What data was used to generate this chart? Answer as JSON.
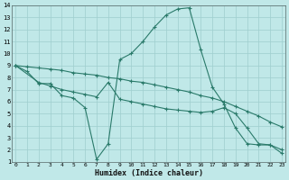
{
  "bg_color": "#c0e8e8",
  "grid_color": "#9ecece",
  "line_color": "#2a7a6a",
  "xlim": [
    0,
    23
  ],
  "ylim": [
    1,
    14
  ],
  "xticks": [
    0,
    1,
    2,
    3,
    4,
    5,
    6,
    7,
    8,
    9,
    10,
    11,
    12,
    13,
    14,
    15,
    16,
    17,
    18,
    19,
    20,
    21,
    22,
    23
  ],
  "yticks": [
    1,
    2,
    3,
    4,
    5,
    6,
    7,
    8,
    9,
    10,
    11,
    12,
    13,
    14
  ],
  "xlabel": "Humidex (Indice chaleur)",
  "line1_x": [
    0,
    1,
    2,
    3,
    4,
    5,
    6,
    7,
    8,
    9,
    10,
    11,
    12,
    13,
    14,
    15,
    16,
    17,
    18,
    19,
    20,
    21,
    22,
    23
  ],
  "line1_y": [
    9.0,
    8.5,
    7.5,
    7.5,
    6.5,
    6.3,
    5.5,
    1.2,
    2.5,
    9.5,
    10.0,
    11.0,
    12.2,
    13.2,
    13.7,
    13.8,
    10.3,
    7.2,
    5.8,
    3.8,
    2.5,
    2.4,
    2.4,
    1.7
  ],
  "line2_x": [
    0,
    1,
    2,
    3,
    4,
    5,
    6,
    7,
    8,
    9,
    10,
    11,
    12,
    13,
    14,
    15,
    16,
    17,
    18,
    19,
    20,
    21,
    22,
    23
  ],
  "line2_y": [
    9.0,
    8.9,
    8.8,
    8.7,
    8.6,
    8.4,
    8.3,
    8.2,
    8.0,
    7.9,
    7.7,
    7.6,
    7.4,
    7.2,
    7.0,
    6.8,
    6.5,
    6.3,
    6.0,
    5.6,
    5.2,
    4.8,
    4.3,
    3.9
  ],
  "line3_x": [
    0,
    2,
    3,
    4,
    5,
    6,
    7,
    8,
    9,
    10,
    11,
    12,
    13,
    14,
    15,
    16,
    17,
    18,
    19,
    20,
    21,
    22,
    23
  ],
  "line3_y": [
    9.0,
    7.6,
    7.3,
    7.0,
    6.8,
    6.6,
    6.4,
    7.6,
    6.2,
    6.0,
    5.8,
    5.6,
    5.4,
    5.3,
    5.2,
    5.1,
    5.2,
    5.5,
    5.0,
    3.8,
    2.5,
    2.4,
    2.0
  ]
}
